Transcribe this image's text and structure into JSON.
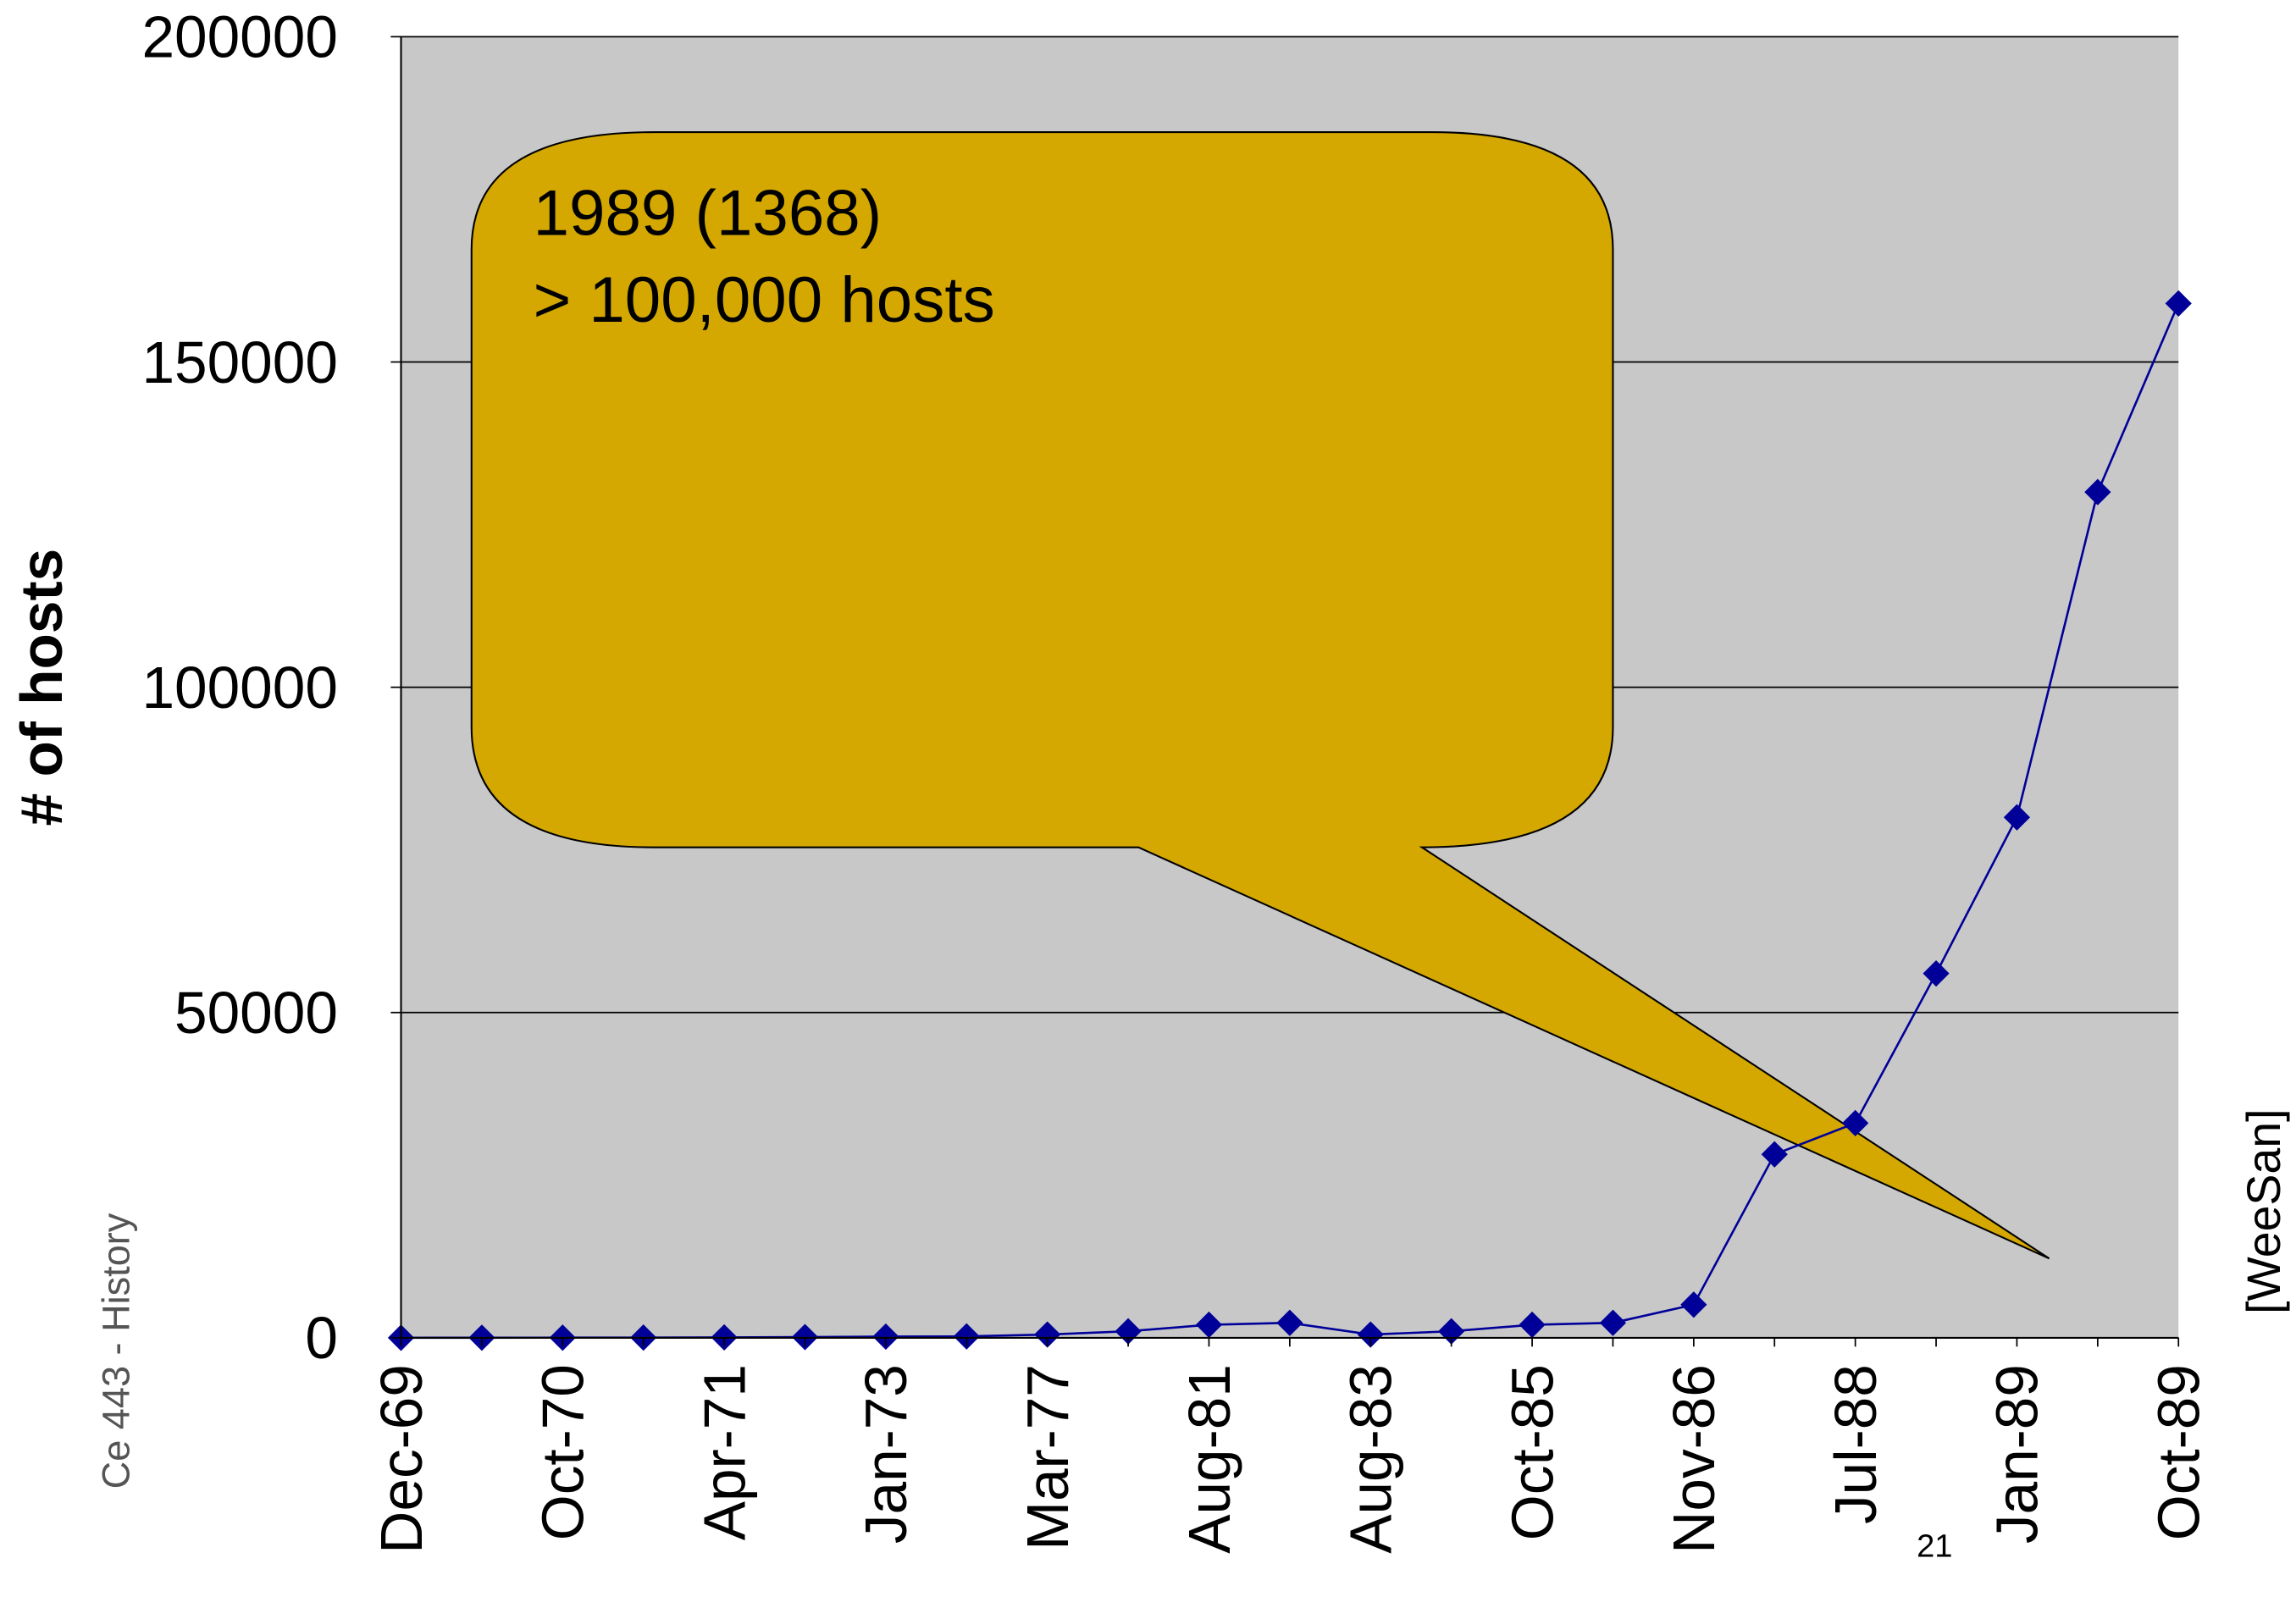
{
  "chart_data": {
    "type": "line",
    "y_label": "# of hosts",
    "annotations": [
      "1989 (1368)",
      "> 100,000 hosts"
    ],
    "categories": [
      "Dec-69",
      null,
      "Oct-70",
      null,
      "Apr-71",
      null,
      "Jan-73",
      null,
      "Mar-77",
      null,
      "Aug-81",
      null,
      "Aug-83",
      null,
      "Oct-85",
      null,
      "Nov-86",
      null,
      "Jul-88",
      null,
      "Jan-89",
      null,
      "Oct-89"
    ],
    "series": [
      {
        "name": "hosts",
        "color": "#000099",
        "values": [
          4,
          13,
          23,
          35,
          62,
          111,
          188,
          213,
          500,
          1000,
          2000,
          2300,
          500,
          1000,
          2000,
          2300,
          5100,
          28200,
          33000,
          56000,
          80000,
          130000,
          159000
        ]
      }
    ],
    "ylim": [
      0,
      200000
    ],
    "yticks": [
      0,
      50000,
      100000,
      150000,
      200000
    ],
    "grid": true,
    "plot_background": "#c8c8c8",
    "callout_color": "#d4a800"
  },
  "slide": {
    "footer": "Ce 443 - History",
    "citation": "[WeeSan]",
    "page_number": "21"
  }
}
